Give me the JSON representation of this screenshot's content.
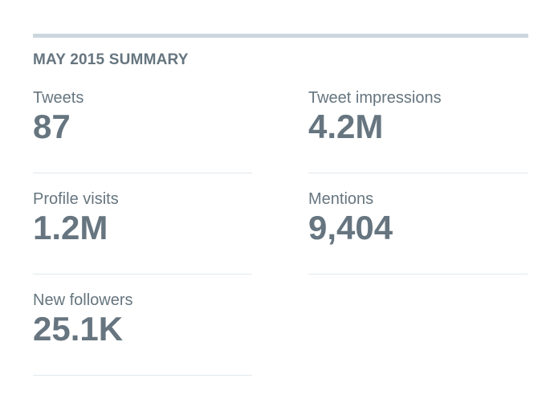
{
  "summary": {
    "title": "MAY 2015 SUMMARY",
    "stats": [
      {
        "label": "Tweets",
        "value": "87"
      },
      {
        "label": "Tweet impressions",
        "value": "4.2M"
      },
      {
        "label": "Profile visits",
        "value": "1.2M"
      },
      {
        "label": "Mentions",
        "value": "9,404"
      },
      {
        "label": "New followers",
        "value": "25.1K"
      }
    ]
  },
  "colors": {
    "text": "#66757f",
    "rule": "#ccd6dd",
    "divider": "#e1e8ed"
  }
}
